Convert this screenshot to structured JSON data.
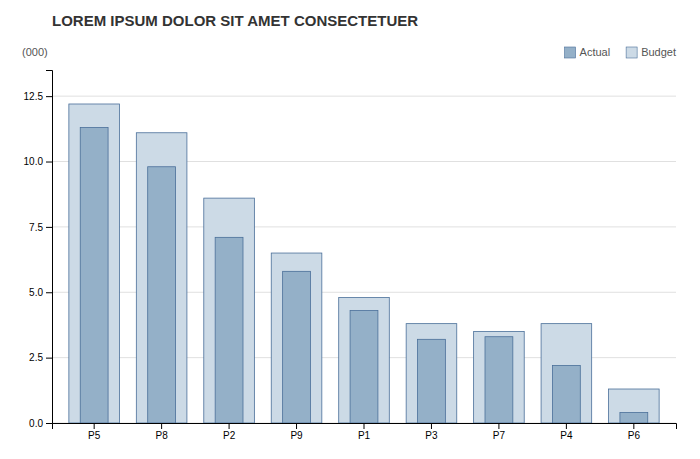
{
  "chart_data": {
    "type": "bar",
    "title": "LOREM IPSUM DOLOR SIT AMET CONSECTETUER",
    "ylabel": "(000)",
    "categories": [
      "P5",
      "P8",
      "P2",
      "P9",
      "P1",
      "P3",
      "P7",
      "P4",
      "P6"
    ],
    "series": [
      {
        "name": "Actual",
        "color": "#94b0c8",
        "values": [
          11.3,
          9.8,
          7.1,
          5.8,
          4.3,
          3.2,
          3.3,
          2.2,
          0.4
        ]
      },
      {
        "name": "Budget",
        "color": "#ccdae6",
        "values": [
          12.2,
          11.1,
          8.6,
          6.5,
          4.8,
          3.8,
          3.5,
          3.8,
          1.3
        ]
      }
    ],
    "ylim": [
      0,
      13.5
    ],
    "yticks": [
      {
        "value": 0.0,
        "label": "0.0"
      },
      2.5,
      {
        "value": 5.0,
        "label": "5.0"
      },
      7.5,
      {
        "value": 10.0,
        "label": "10.0"
      },
      12.5
    ],
    "grid": true,
    "legend": "top-right"
  }
}
